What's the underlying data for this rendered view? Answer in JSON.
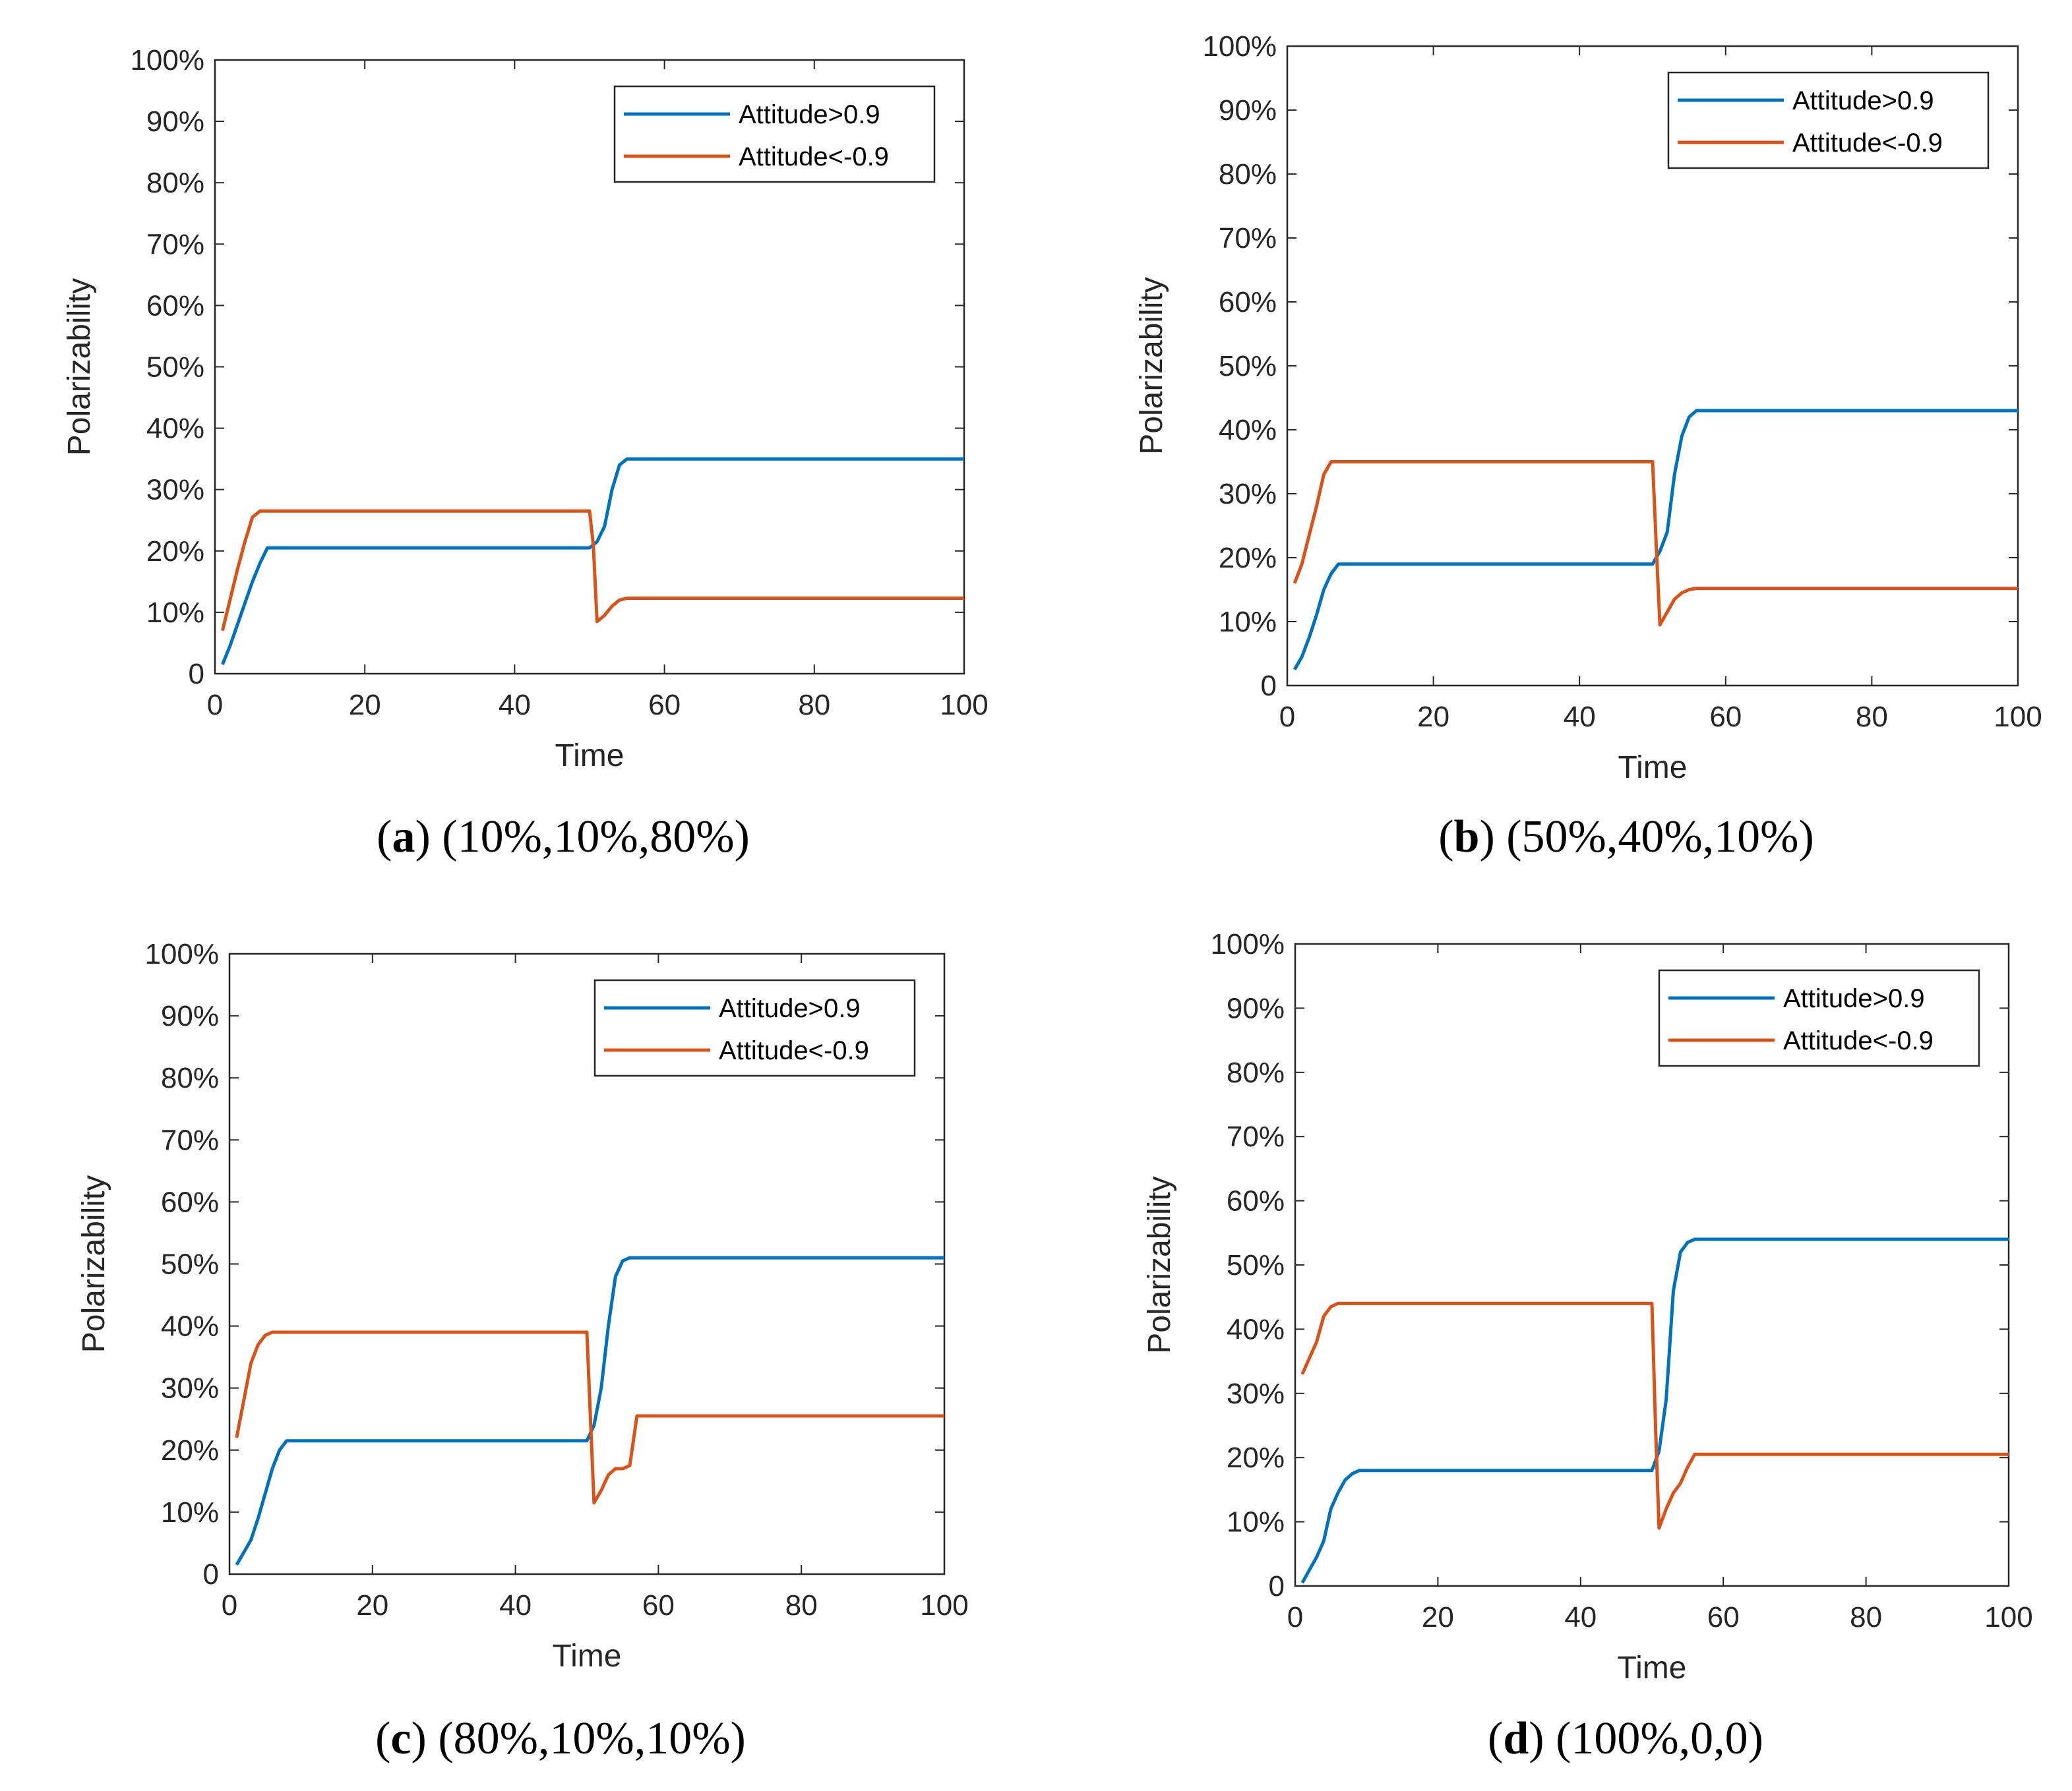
{
  "colors": {
    "blue": "#0072bd",
    "orange": "#d95319",
    "axis": "#262626"
  },
  "chart_data": [
    {
      "type": "line",
      "caption_letter": "a",
      "caption_text": "(10%,10%,80%)",
      "xlabel": "Time",
      "ylabel": "Polarizability",
      "xlim": [
        0,
        100
      ],
      "ylim": [
        0,
        100
      ],
      "xticks": [
        "0",
        "20",
        "40",
        "60",
        "80",
        "100"
      ],
      "yticks": [
        "0",
        "10%",
        "20%",
        "30%",
        "40%",
        "50%",
        "60%",
        "70%",
        "80%",
        "90%",
        "100%"
      ],
      "legend_position": "top-right",
      "series": [
        {
          "name": "Attitude>0.9",
          "color": "#0072bd",
          "x": [
            1,
            2,
            3,
            4,
            5,
            6,
            7,
            20,
            40,
            50,
            51,
            52,
            53,
            54,
            55,
            60,
            80,
            100
          ],
          "y": [
            1.5,
            4.5,
            8,
            11.5,
            15,
            18,
            20.5,
            20.5,
            20.5,
            20.5,
            21.5,
            24,
            30,
            34,
            35,
            35,
            35,
            35
          ]
        },
        {
          "name": "Attitude<-0.9",
          "color": "#d95319",
          "x": [
            1,
            2,
            3,
            4,
            5,
            6,
            20,
            40,
            50,
            50.5,
            51,
            52,
            53,
            54,
            55,
            60,
            80,
            100
          ],
          "y": [
            7,
            12,
            17,
            21.5,
            25.5,
            26.5,
            26.5,
            26.5,
            26.5,
            21,
            8.5,
            9.5,
            11,
            12,
            12.3,
            12.3,
            12.3,
            12.3
          ]
        }
      ]
    },
    {
      "type": "line",
      "caption_letter": "b",
      "caption_text": "(50%,40%,10%)",
      "xlabel": "Time",
      "ylabel": "Polarizability",
      "xlim": [
        0,
        100
      ],
      "ylim": [
        0,
        100
      ],
      "xticks": [
        "0",
        "20",
        "40",
        "60",
        "80",
        "100"
      ],
      "yticks": [
        "0",
        "10%",
        "20%",
        "30%",
        "40%",
        "50%",
        "60%",
        "70%",
        "80%",
        "90%",
        "100%"
      ],
      "legend_position": "top-right",
      "series": [
        {
          "name": "Attitude>0.9",
          "color": "#0072bd",
          "x": [
            1,
            2,
            3,
            4,
            5,
            6,
            7,
            20,
            40,
            50,
            51,
            52,
            53,
            54,
            55,
            56,
            60,
            80,
            100
          ],
          "y": [
            2.5,
            4.5,
            7.5,
            11,
            15,
            17.5,
            19,
            19,
            19,
            19,
            21,
            24,
            33,
            39,
            42,
            43,
            43,
            43,
            43
          ]
        },
        {
          "name": "Attitude<-0.9",
          "color": "#d95319",
          "x": [
            1,
            2,
            3,
            4,
            5,
            6,
            20,
            40,
            50,
            50.5,
            51,
            52,
            53,
            54,
            55,
            56,
            60,
            80,
            100
          ],
          "y": [
            16,
            19,
            23.5,
            28,
            33,
            35,
            35,
            35,
            35,
            22,
            9.5,
            11.5,
            13.5,
            14.5,
            15,
            15.2,
            15.2,
            15.2,
            15.2
          ]
        }
      ]
    },
    {
      "type": "line",
      "caption_letter": "c",
      "caption_text": "(80%,10%,10%)",
      "xlabel": "Time",
      "ylabel": "Polarizability",
      "xlim": [
        0,
        100
      ],
      "ylim": [
        0,
        100
      ],
      "xticks": [
        "0",
        "20",
        "40",
        "60",
        "80",
        "100"
      ],
      "yticks": [
        "0",
        "10%",
        "20%",
        "30%",
        "40%",
        "50%",
        "60%",
        "70%",
        "80%",
        "90%",
        "100%"
      ],
      "legend_position": "top-right",
      "series": [
        {
          "name": "Attitude>0.9",
          "color": "#0072bd",
          "x": [
            1,
            2,
            3,
            4,
            5,
            6,
            7,
            8,
            20,
            40,
            50,
            51,
            52,
            53,
            54,
            55,
            56,
            60,
            80,
            100
          ],
          "y": [
            1.5,
            3.5,
            5.5,
            9,
            13,
            17,
            20,
            21.5,
            21.5,
            21.5,
            21.5,
            24,
            30,
            40,
            48,
            50.5,
            51,
            51,
            51,
            51
          ]
        },
        {
          "name": "Attitude<-0.9",
          "color": "#d95319",
          "x": [
            1,
            2,
            3,
            4,
            5,
            6,
            7,
            20,
            40,
            50,
            50.5,
            51,
            52,
            53,
            54,
            55,
            56,
            57,
            60,
            80,
            100
          ],
          "y": [
            22,
            28,
            34,
            37,
            38.5,
            39,
            39,
            39,
            39,
            39,
            25,
            11.5,
            13.5,
            16,
            17,
            17,
            17.5,
            25.5,
            25.5,
            25.5,
            25.5
          ]
        }
      ]
    },
    {
      "type": "line",
      "caption_letter": "d",
      "caption_text": "(100%,0,0)",
      "xlabel": "Time",
      "ylabel": "Polarizability",
      "xlim": [
        0,
        100
      ],
      "ylim": [
        0,
        100
      ],
      "xticks": [
        "0",
        "20",
        "40",
        "60",
        "80",
        "100"
      ],
      "yticks": [
        "0",
        "10%",
        "20%",
        "30%",
        "40%",
        "50%",
        "60%",
        "70%",
        "80%",
        "90%",
        "100%"
      ],
      "legend_position": "top-right",
      "series": [
        {
          "name": "Attitude>0.9",
          "color": "#0072bd",
          "x": [
            1,
            2,
            3,
            4,
            5,
            6,
            7,
            8,
            9,
            20,
            40,
            50,
            51,
            52,
            53,
            54,
            55,
            56,
            60,
            80,
            100
          ],
          "y": [
            0.5,
            2.5,
            4.5,
            7,
            12,
            14.5,
            16.5,
            17.5,
            18,
            18,
            18,
            18,
            21,
            29,
            46,
            52,
            53.5,
            54,
            54,
            54,
            54
          ]
        },
        {
          "name": "Attitude<-0.9",
          "color": "#d95319",
          "x": [
            1,
            2,
            3,
            4,
            5,
            6,
            20,
            40,
            50,
            50.5,
            51,
            52,
            53,
            54,
            55,
            56,
            60,
            80,
            100
          ],
          "y": [
            33,
            35.5,
            38,
            42,
            43.5,
            44,
            44,
            44,
            44,
            25,
            9,
            12,
            14.5,
            16,
            18.5,
            20.5,
            20.5,
            20.5,
            20.5
          ]
        }
      ]
    }
  ]
}
